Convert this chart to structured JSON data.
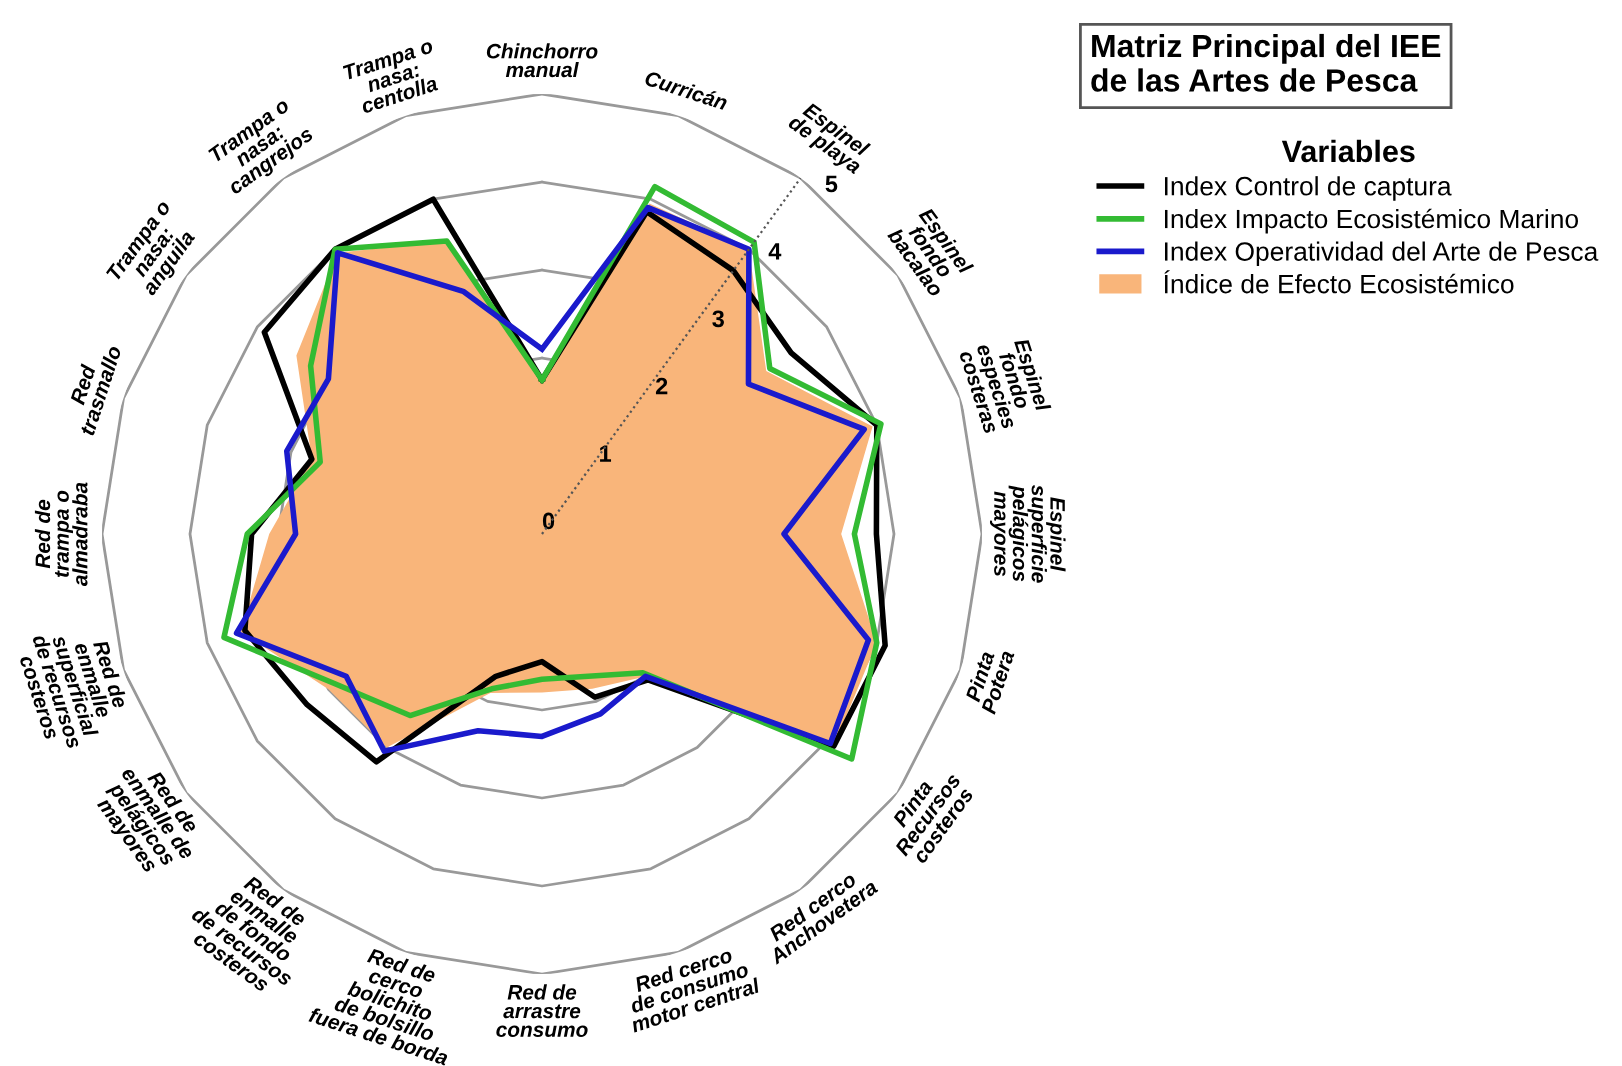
{
  "chart_data": {
    "type": "radar",
    "title": "Matriz Principal del IEE\nde las Artes de Pesca",
    "legend_title": "Variables",
    "categories": [
      "Chinchorro\nmanual",
      "Curricán",
      "Espinel\nde playa",
      "Espinel\nfondo\nbacalao",
      "Espinel\nfondo\nespecies\ncosteras",
      "Espinel\nsuperficie\npelágicos\nmayores",
      "Pinta\nPotera",
      "Pinta\nRecursos\ncosteros",
      "Red cerco\nAnchovetera",
      "Red cerco\nde consumo\nmotor central",
      "Red de\narrastre\nconsumo",
      "Red de\ncerco\nbolichito\nde bolsillo\nfuera de borda",
      "Red de\nenmalle\nde fondo\nde recursos\ncosteros",
      "Red de\nenmalle de\npelágicos\nmayores",
      "Red de\nenmalle\nsuperficial\nde recursos\ncosteros",
      "Red de\ntrampa o\nalmadraba",
      "Red\ntrasmallo",
      "Trampa o\nnasa:\nanguila",
      "Trampa o\nnasa:\ncangrejos",
      "Trampa o\nnasa:\ncentolla"
    ],
    "ylim": [
      0,
      5
    ],
    "yticks": [
      0,
      1,
      2,
      3,
      4,
      5
    ],
    "grid": true,
    "legend": "top right",
    "series": [
      {
        "name": "Index Control de captura",
        "color": "#000000",
        "values": [
          1.75,
          3.85,
          3.7,
          3.5,
          4.0,
          3.8,
          4.1,
          4.1,
          2.05,
          1.95,
          1.45,
          1.7,
          3.2,
          3.3,
          3.55,
          3.3,
          2.75,
          3.9,
          4.0,
          4.0
        ]
      },
      {
        "name": "Index Impacto Ecosistémico Marino",
        "color": "#33bb33",
        "values": [
          1.75,
          4.15,
          4.1,
          3.2,
          4.05,
          3.55,
          4.0,
          4.35,
          1.95,
          1.7,
          1.65,
          1.85,
          2.55,
          2.9,
          3.8,
          3.35,
          2.65,
          3.25,
          4.0,
          3.5
        ]
      },
      {
        "name": "Index Operatividad del Arte de Pesca",
        "color": "#1a1acc",
        "values": [
          2.1,
          3.9,
          4.0,
          2.9,
          3.85,
          2.75,
          3.9,
          4.05,
          2.0,
          2.15,
          2.3,
          2.35,
          3.05,
          2.75,
          3.65,
          2.8,
          3.05,
          3.0,
          3.95,
          2.9
        ]
      },
      {
        "name": "Índice de Efecto Ecosistémico",
        "type": "area",
        "color": "#f9b57a",
        "values": [
          1.8,
          3.95,
          4.0,
          3.15,
          3.95,
          3.4,
          4.0,
          4.1,
          2.0,
          1.85,
          1.8,
          1.9,
          3.0,
          3.0,
          3.6,
          3.1,
          2.75,
          3.45,
          3.95,
          3.5
        ]
      }
    ]
  }
}
